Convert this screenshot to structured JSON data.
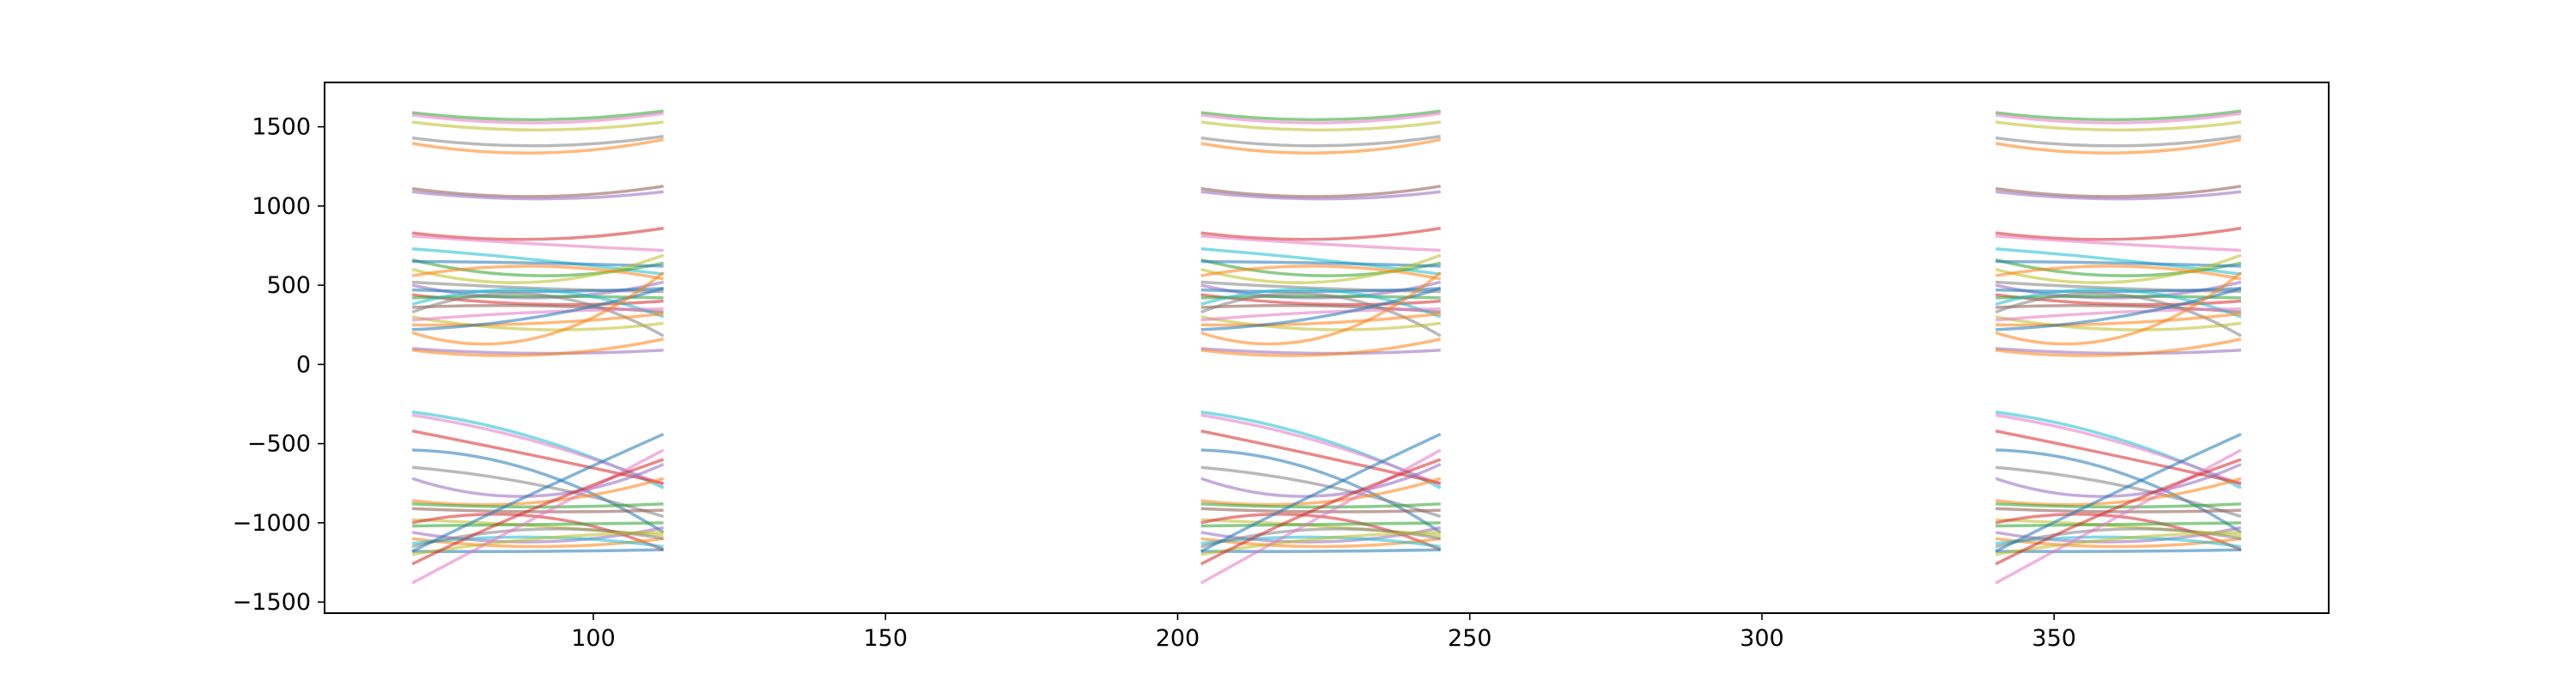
{
  "chart_data": {
    "type": "line",
    "title": "",
    "xlabel": "",
    "ylabel": "",
    "xlim": [
      54,
      397
    ],
    "ylim": [
      -1570,
      1780
    ],
    "x_ticks": [
      100,
      150,
      200,
      250,
      300,
      350
    ],
    "x_tick_labels": [
      "100",
      "150",
      "200",
      "250",
      "300",
      "350"
    ],
    "y_ticks": [
      -1500,
      -1000,
      -500,
      0,
      500,
      1000,
      1500
    ],
    "y_tick_labels": [
      "−1500",
      "−1000",
      "−500",
      "0",
      "500",
      "1000",
      "1500"
    ],
    "grid": false,
    "legend": "none",
    "segment_x_ranges": [
      [
        69,
        112
      ],
      [
        204,
        245
      ],
      [
        340,
        382
      ]
    ],
    "palette": [
      "#1f77b4",
      "#ff7f0e",
      "#2ca02c",
      "#d62728",
      "#9467bd",
      "#8c564b",
      "#e377c2",
      "#7f7f7f",
      "#bcbd22",
      "#17becf"
    ],
    "series": [
      {
        "color": "#2ca02c",
        "values": [
          1590,
          1545,
          1600
        ]
      },
      {
        "color": "#e377c2",
        "values": [
          1575,
          1525,
          1585
        ]
      },
      {
        "color": "#bcbd22",
        "values": [
          1530,
          1480,
          1530
        ]
      },
      {
        "color": "#7f7f7f",
        "values": [
          1430,
          1380,
          1440
        ]
      },
      {
        "color": "#ff7f0e",
        "values": [
          1395,
          1335,
          1420
        ]
      },
      {
        "color": "#8c564b",
        "values": [
          1110,
          1060,
          1125
        ]
      },
      {
        "color": "#9467bd",
        "values": [
          1090,
          1045,
          1090
        ]
      },
      {
        "color": "#d62728",
        "values": [
          830,
          790,
          860
        ]
      },
      {
        "color": "#e377c2",
        "values": [
          810,
          760,
          720
        ]
      },
      {
        "color": "#17becf",
        "values": [
          730,
          660,
          570
        ]
      },
      {
        "color": "#2ca02c",
        "values": [
          660,
          560,
          640
        ]
      },
      {
        "color": "#1f77b4",
        "values": [
          650,
          640,
          620
        ]
      },
      {
        "color": "#bcbd22",
        "values": [
          600,
          520,
          690
        ]
      },
      {
        "color": "#ff7f0e",
        "values": [
          560,
          620,
          540
        ]
      },
      {
        "color": "#7f7f7f",
        "values": [
          520,
          480,
          460
        ]
      },
      {
        "color": "#9467bd",
        "values": [
          500,
          420,
          520
        ]
      },
      {
        "color": "#1f77b4",
        "values": [
          470,
          460,
          480
        ]
      },
      {
        "color": "#d62728",
        "values": [
          440,
          380,
          400
        ]
      },
      {
        "color": "#2ca02c",
        "values": [
          420,
          430,
          420
        ]
      },
      {
        "color": "#8c564b",
        "values": [
          360,
          370,
          330
        ]
      },
      {
        "color": "#17becf",
        "values": [
          380,
          470,
          300
        ]
      },
      {
        "color": "#7f7f7f",
        "values": [
          330,
          440,
          180
        ]
      },
      {
        "color": "#bcbd22",
        "values": [
          300,
          220,
          260
        ]
      },
      {
        "color": "#ff7f0e",
        "values": [
          250,
          260,
          320
        ]
      },
      {
        "color": "#e377c2",
        "values": [
          280,
          330,
          350
        ]
      },
      {
        "color": "#1f77b4",
        "values": [
          220,
          300,
          480
        ]
      },
      {
        "color": "#ff7f0e",
        "values": [
          200,
          170,
          580
        ]
      },
      {
        "color": "#9467bd",
        "values": [
          100,
          70,
          90
        ]
      },
      {
        "color": "#ff7f0e",
        "values": [
          90,
          60,
          160
        ]
      },
      {
        "color": "#17becf",
        "values": [
          -300,
          -470,
          -780
        ]
      },
      {
        "color": "#e377c2",
        "values": [
          -320,
          -490,
          -760
        ]
      },
      {
        "color": "#d62728",
        "values": [
          -420,
          -580,
          -750
        ]
      },
      {
        "color": "#1f77b4",
        "values": [
          -540,
          -680,
          -1060
        ]
      },
      {
        "color": "#7f7f7f",
        "values": [
          -650,
          -760,
          -960
        ]
      },
      {
        "color": "#9467bd",
        "values": [
          -720,
          -830,
          -630
        ]
      },
      {
        "color": "#ff7f0e",
        "values": [
          -860,
          -870,
          -720
        ]
      },
      {
        "color": "#2ca02c",
        "values": [
          -880,
          -900,
          -880
        ]
      },
      {
        "color": "#8c564b",
        "values": [
          -910,
          -930,
          -920
        ]
      },
      {
        "color": "#bcbd22",
        "values": [
          -980,
          -1020,
          -1080
        ]
      },
      {
        "color": "#d62728",
        "values": [
          -1000,
          -960,
          -1170
        ]
      },
      {
        "color": "#2ca02c",
        "values": [
          -1020,
          -1010,
          -1000
        ]
      },
      {
        "color": "#9467bd",
        "values": [
          -1060,
          -1120,
          -1030
        ]
      },
      {
        "color": "#ff7f0e",
        "values": [
          -1100,
          -1150,
          -1100
        ]
      },
      {
        "color": "#17becf",
        "values": [
          -1130,
          -1090,
          -1150
        ]
      },
      {
        "color": "#7f7f7f",
        "values": [
          -1150,
          -1040,
          -1100
        ]
      },
      {
        "color": "#1f77b4",
        "values": [
          -1180,
          -1180,
          -1170
        ]
      },
      {
        "color": "#bcbd22",
        "values": [
          -1200,
          -1100,
          -1060
        ]
      },
      {
        "color": "#1f77b4",
        "values": [
          -1180,
          -800,
          -440
        ]
      },
      {
        "color": "#e377c2",
        "values": [
          -1380,
          -960,
          -540
        ]
      },
      {
        "color": "#d62728",
        "values": [
          -1260,
          -900,
          -600
        ]
      }
    ]
  }
}
